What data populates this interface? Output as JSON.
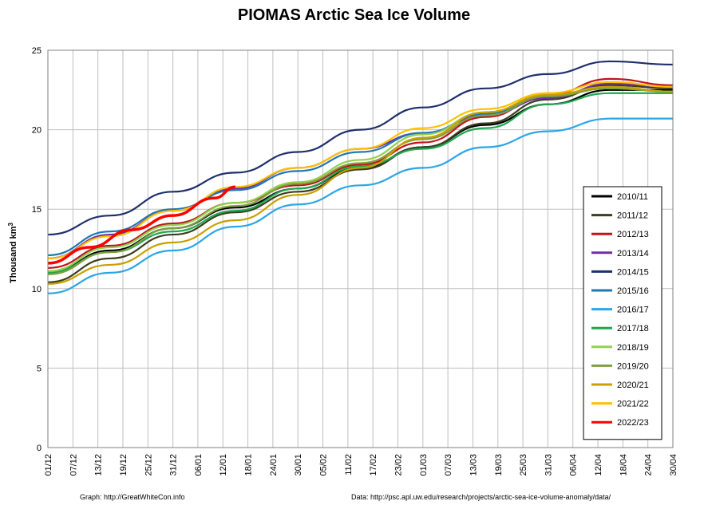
{
  "chart_data": {
    "type": "line",
    "title": "PIOMAS Arctic Sea Ice Volume",
    "ylabel": "Thousand km",
    "ylabel_sup": "3",
    "ylim": [
      0,
      25
    ],
    "yticks": [
      0,
      5,
      10,
      15,
      20,
      25
    ],
    "x_tick_labels": [
      "01/12",
      "07/12",
      "13/12",
      "19/12",
      "25/12",
      "31/12",
      "06/01",
      "12/01",
      "18/01",
      "24/01",
      "30/01",
      "05/02",
      "11/02",
      "17/02",
      "23/02",
      "01/03",
      "07/03",
      "13/03",
      "19/03",
      "25/03",
      "31/03",
      "06/04",
      "12/04",
      "18/04",
      "24/04",
      "30/04"
    ],
    "x_range_days": [
      0,
      150
    ],
    "grid": true,
    "legend_position": "right",
    "series": [
      {
        "name": "2010/11",
        "color": "#000000",
        "points": [
          [
            0,
            11.0
          ],
          [
            15,
            12.4
          ],
          [
            30,
            13.8
          ],
          [
            45,
            15.1
          ],
          [
            60,
            16.3
          ],
          [
            75,
            17.6
          ],
          [
            90,
            18.9
          ],
          [
            105,
            20.3
          ],
          [
            120,
            21.6
          ],
          [
            135,
            22.5
          ],
          [
            150,
            22.5
          ]
        ]
      },
      {
        "name": "2011/12",
        "color": "#3d3d1f",
        "points": [
          [
            0,
            10.4
          ],
          [
            15,
            11.9
          ],
          [
            30,
            13.4
          ],
          [
            45,
            14.8
          ],
          [
            60,
            16.1
          ],
          [
            75,
            17.5
          ],
          [
            90,
            18.9
          ],
          [
            105,
            20.4
          ],
          [
            120,
            21.9
          ],
          [
            135,
            22.8
          ],
          [
            150,
            22.6
          ]
        ]
      },
      {
        "name": "2012/13",
        "color": "#c0141c",
        "points": [
          [
            0,
            11.3
          ],
          [
            15,
            12.7
          ],
          [
            30,
            14.1
          ],
          [
            45,
            15.4
          ],
          [
            60,
            16.5
          ],
          [
            75,
            17.8
          ],
          [
            90,
            19.2
          ],
          [
            105,
            20.8
          ],
          [
            120,
            22.2
          ],
          [
            135,
            23.2
          ],
          [
            150,
            22.8
          ]
        ]
      },
      {
        "name": "2013/14",
        "color": "#7030a0",
        "points": [
          [
            0,
            11.9
          ],
          [
            15,
            13.4
          ],
          [
            30,
            14.9
          ],
          [
            45,
            16.3
          ],
          [
            60,
            17.6
          ],
          [
            75,
            18.8
          ],
          [
            90,
            19.8
          ],
          [
            105,
            20.9
          ],
          [
            120,
            22.0
          ],
          [
            135,
            22.9
          ],
          [
            150,
            22.7
          ]
        ]
      },
      {
        "name": "2014/15",
        "color": "#1f2f6e",
        "points": [
          [
            0,
            13.4
          ],
          [
            15,
            14.6
          ],
          [
            30,
            16.1
          ],
          [
            45,
            17.3
          ],
          [
            60,
            18.6
          ],
          [
            75,
            20.0
          ],
          [
            90,
            21.4
          ],
          [
            105,
            22.6
          ],
          [
            120,
            23.5
          ],
          [
            135,
            24.3
          ],
          [
            150,
            24.1
          ]
        ]
      },
      {
        "name": "2015/16",
        "color": "#1f77b4",
        "points": [
          [
            0,
            12.1
          ],
          [
            15,
            13.6
          ],
          [
            30,
            15.0
          ],
          [
            45,
            16.2
          ],
          [
            60,
            17.4
          ],
          [
            75,
            18.6
          ],
          [
            90,
            19.8
          ],
          [
            105,
            21.0
          ],
          [
            120,
            22.1
          ],
          [
            135,
            22.7
          ],
          [
            150,
            22.4
          ]
        ]
      },
      {
        "name": "2016/17",
        "color": "#2ba6e6",
        "points": [
          [
            0,
            9.7
          ],
          [
            15,
            11.0
          ],
          [
            30,
            12.4
          ],
          [
            45,
            13.9
          ],
          [
            60,
            15.3
          ],
          [
            75,
            16.5
          ],
          [
            90,
            17.6
          ],
          [
            105,
            18.9
          ],
          [
            120,
            19.9
          ],
          [
            135,
            20.7
          ],
          [
            150,
            20.7
          ]
        ]
      },
      {
        "name": "2017/18",
        "color": "#1fa84f",
        "points": [
          [
            0,
            11.0
          ],
          [
            15,
            12.3
          ],
          [
            30,
            13.6
          ],
          [
            45,
            14.9
          ],
          [
            60,
            16.3
          ],
          [
            75,
            17.7
          ],
          [
            90,
            18.8
          ],
          [
            105,
            20.1
          ],
          [
            120,
            21.6
          ],
          [
            135,
            22.3
          ],
          [
            150,
            22.3
          ]
        ]
      },
      {
        "name": "2018/19",
        "color": "#92d050",
        "points": [
          [
            0,
            11.1
          ],
          [
            15,
            12.6
          ],
          [
            30,
            14.0
          ],
          [
            45,
            15.4
          ],
          [
            60,
            16.7
          ],
          [
            75,
            18.1
          ],
          [
            90,
            19.7
          ],
          [
            105,
            21.1
          ],
          [
            120,
            22.2
          ],
          [
            135,
            22.6
          ],
          [
            150,
            22.4
          ]
        ]
      },
      {
        "name": "2019/20",
        "color": "#7f9f3f",
        "points": [
          [
            0,
            10.9
          ],
          [
            15,
            12.3
          ],
          [
            30,
            13.8
          ],
          [
            45,
            15.2
          ],
          [
            60,
            16.6
          ],
          [
            75,
            17.9
          ],
          [
            90,
            19.4
          ],
          [
            105,
            20.9
          ],
          [
            120,
            22.1
          ],
          [
            135,
            22.6
          ],
          [
            150,
            22.4
          ]
        ]
      },
      {
        "name": "2020/21",
        "color": "#c8a000",
        "points": [
          [
            0,
            10.3
          ],
          [
            15,
            11.5
          ],
          [
            30,
            12.9
          ],
          [
            45,
            14.3
          ],
          [
            60,
            15.9
          ],
          [
            75,
            17.6
          ],
          [
            90,
            19.5
          ],
          [
            105,
            21.1
          ],
          [
            120,
            22.2
          ],
          [
            135,
            22.7
          ],
          [
            150,
            22.4
          ]
        ]
      },
      {
        "name": "2021/22",
        "color": "#ffc000",
        "points": [
          [
            0,
            11.9
          ],
          [
            15,
            13.3
          ],
          [
            30,
            14.9
          ],
          [
            45,
            16.4
          ],
          [
            60,
            17.6
          ],
          [
            75,
            18.8
          ],
          [
            90,
            20.1
          ],
          [
            105,
            21.3
          ],
          [
            120,
            22.3
          ],
          [
            135,
            23.0
          ],
          [
            150,
            22.7
          ]
        ]
      },
      {
        "name": "2022/23",
        "color": "#ff0000",
        "points": [
          [
            0,
            11.6
          ],
          [
            10,
            12.6
          ],
          [
            20,
            13.7
          ],
          [
            30,
            14.6
          ],
          [
            40,
            15.7
          ],
          [
            45,
            16.4
          ]
        ]
      }
    ],
    "credits": {
      "left": "Graph: http://GreatWhiteCon.info",
      "right": "Data: http://psc.apl.uw.edu/research/projects/arctic-sea-ice-volume-anomaly/data/"
    }
  }
}
